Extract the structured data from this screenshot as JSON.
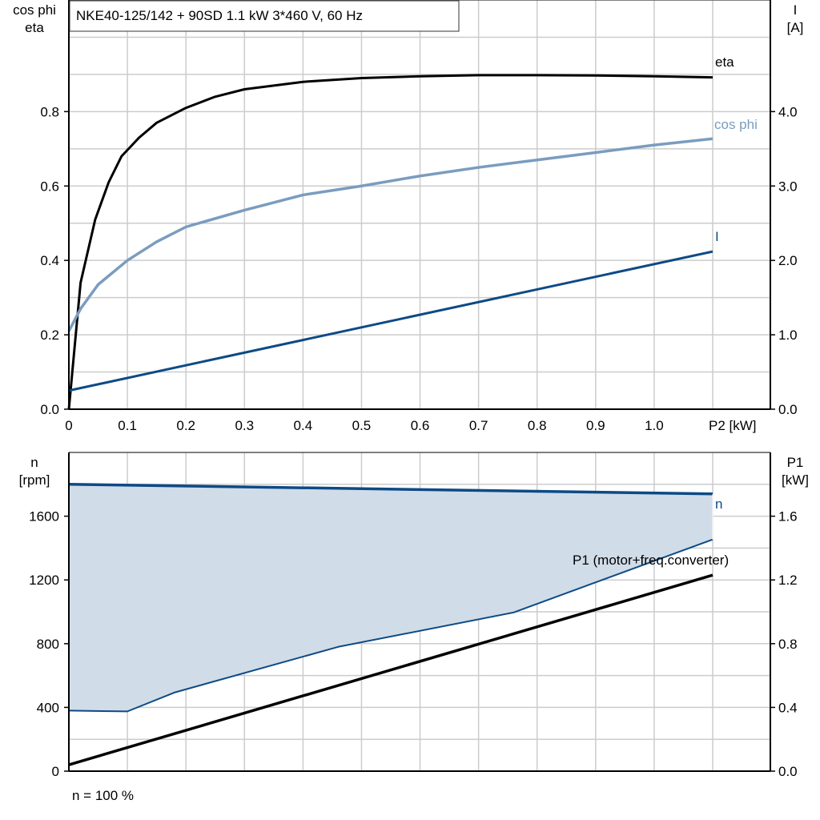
{
  "colors": {
    "eta": "#000000",
    "cos_phi": "#7a9cbf",
    "current": "#0d4a85",
    "speed": "#0d4a85",
    "p1": "#000000",
    "fill": "#d0dce8",
    "grid": "#cccccc"
  },
  "chart_data": [
    {
      "type": "line",
      "title": "NKE40-125/142 + 90SD   1.1 kW   3*460 V, 60 Hz",
      "ylabel_left": [
        "cos phi",
        "eta"
      ],
      "ylabel_right": [
        "I",
        "[A]"
      ],
      "xlabel": "P2 [kW]",
      "xlim": [
        0,
        1.2
      ],
      "ylim_left": [
        0,
        1.1
      ],
      "ylim_right": [
        0,
        5.5
      ],
      "grid": true,
      "x_ticks": [
        "0",
        "0.1",
        "0.2",
        "0.3",
        "0.4",
        "0.5",
        "0.6",
        "0.7",
        "0.8",
        "0.9",
        "1.0"
      ],
      "y_ticks_left": [
        "0.0",
        "0.2",
        "0.4",
        "0.6",
        "0.8"
      ],
      "y_ticks_right": [
        "0.0",
        "1.0",
        "2.0",
        "3.0",
        "4.0"
      ],
      "series": [
        {
          "name": "eta",
          "axis": "left",
          "x": [
            0,
            0.02,
            0.045,
            0.068,
            0.09,
            0.12,
            0.15,
            0.2,
            0.25,
            0.3,
            0.4,
            0.5,
            0.6,
            0.7,
            0.8,
            0.9,
            1.0,
            1.1
          ],
          "y": [
            0,
            0.34,
            0.51,
            0.61,
            0.68,
            0.73,
            0.77,
            0.81,
            0.84,
            0.86,
            0.88,
            0.89,
            0.895,
            0.898,
            0.898,
            0.897,
            0.895,
            0.892
          ]
        },
        {
          "name": "cos phi",
          "axis": "left",
          "x": [
            0,
            0.02,
            0.05,
            0.1,
            0.15,
            0.2,
            0.3,
            0.4,
            0.5,
            0.6,
            0.7,
            0.8,
            0.9,
            1.0,
            1.1
          ],
          "y": [
            0.21,
            0.27,
            0.335,
            0.4,
            0.45,
            0.49,
            0.535,
            0.576,
            0.6,
            0.627,
            0.65,
            0.67,
            0.69,
            0.71,
            0.727
          ]
        },
        {
          "name": "I",
          "axis": "right",
          "x": [
            0,
            1.1
          ],
          "y": [
            0.25,
            2.12
          ]
        }
      ]
    },
    {
      "type": "area",
      "ylabel_left": [
        "n",
        "[rpm]"
      ],
      "ylabel_right": [
        "P1",
        "[kW]"
      ],
      "footnote": "n = 100 %",
      "xlim": [
        0,
        1.2
      ],
      "ylim_left": [
        0,
        2000
      ],
      "ylim_right": [
        0,
        2.0
      ],
      "grid": true,
      "y_ticks_left": [
        "0",
        "400",
        "800",
        "1200",
        "1600"
      ],
      "y_ticks_right": [
        "0.0",
        "0.4",
        "0.8",
        "1.2",
        "1.6"
      ],
      "series": [
        {
          "name": "n",
          "axis": "left",
          "x": [
            0,
            1.1
          ],
          "y": [
            1800,
            1740
          ]
        },
        {
          "name": "",
          "axis": "left",
          "x": [
            0,
            0.1,
            0.18,
            0.46,
            0.76,
            1.1
          ],
          "y": [
            380,
            375,
            493,
            780,
            996,
            1454
          ]
        },
        {
          "name": "P1 (motor+freq.converter)",
          "axis": "right",
          "x": [
            0,
            1.1
          ],
          "y": [
            0.04,
            1.23
          ]
        }
      ]
    }
  ]
}
